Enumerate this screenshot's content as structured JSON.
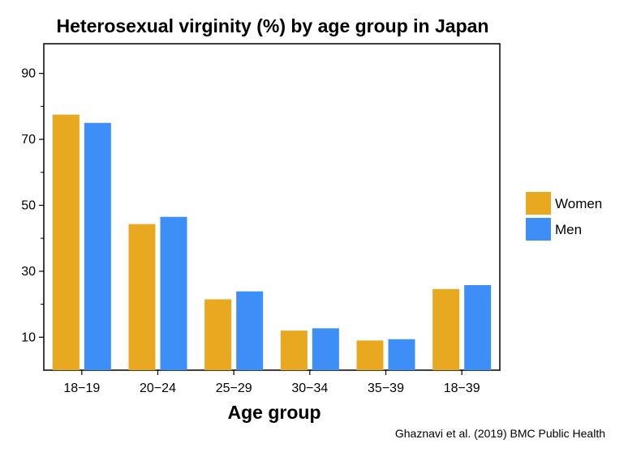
{
  "chart_data": {
    "type": "bar",
    "title": "Heterosexual virginity (%) by age group in Japan",
    "xlabel": "Age group",
    "ylabel": "",
    "categories": [
      "18−19",
      "20−24",
      "25−29",
      "30−34",
      "35−39",
      "18−39"
    ],
    "series": [
      {
        "name": "Women",
        "color": "#E8A820",
        "values": [
          77.5,
          44.3,
          21.5,
          12.0,
          9.0,
          24.6
        ]
      },
      {
        "name": "Men",
        "color": "#3D8FF7",
        "values": [
          75.0,
          46.5,
          23.9,
          12.7,
          9.4,
          25.8
        ]
      }
    ],
    "ylim": [
      0,
      99
    ],
    "yticks_labeled": [
      10,
      30,
      50,
      70,
      90
    ],
    "yticks_minor": [
      20,
      40,
      60,
      80
    ],
    "legend": "right",
    "grid": false
  },
  "source": "Ghaznavi et al. (2019) BMC Public Health"
}
